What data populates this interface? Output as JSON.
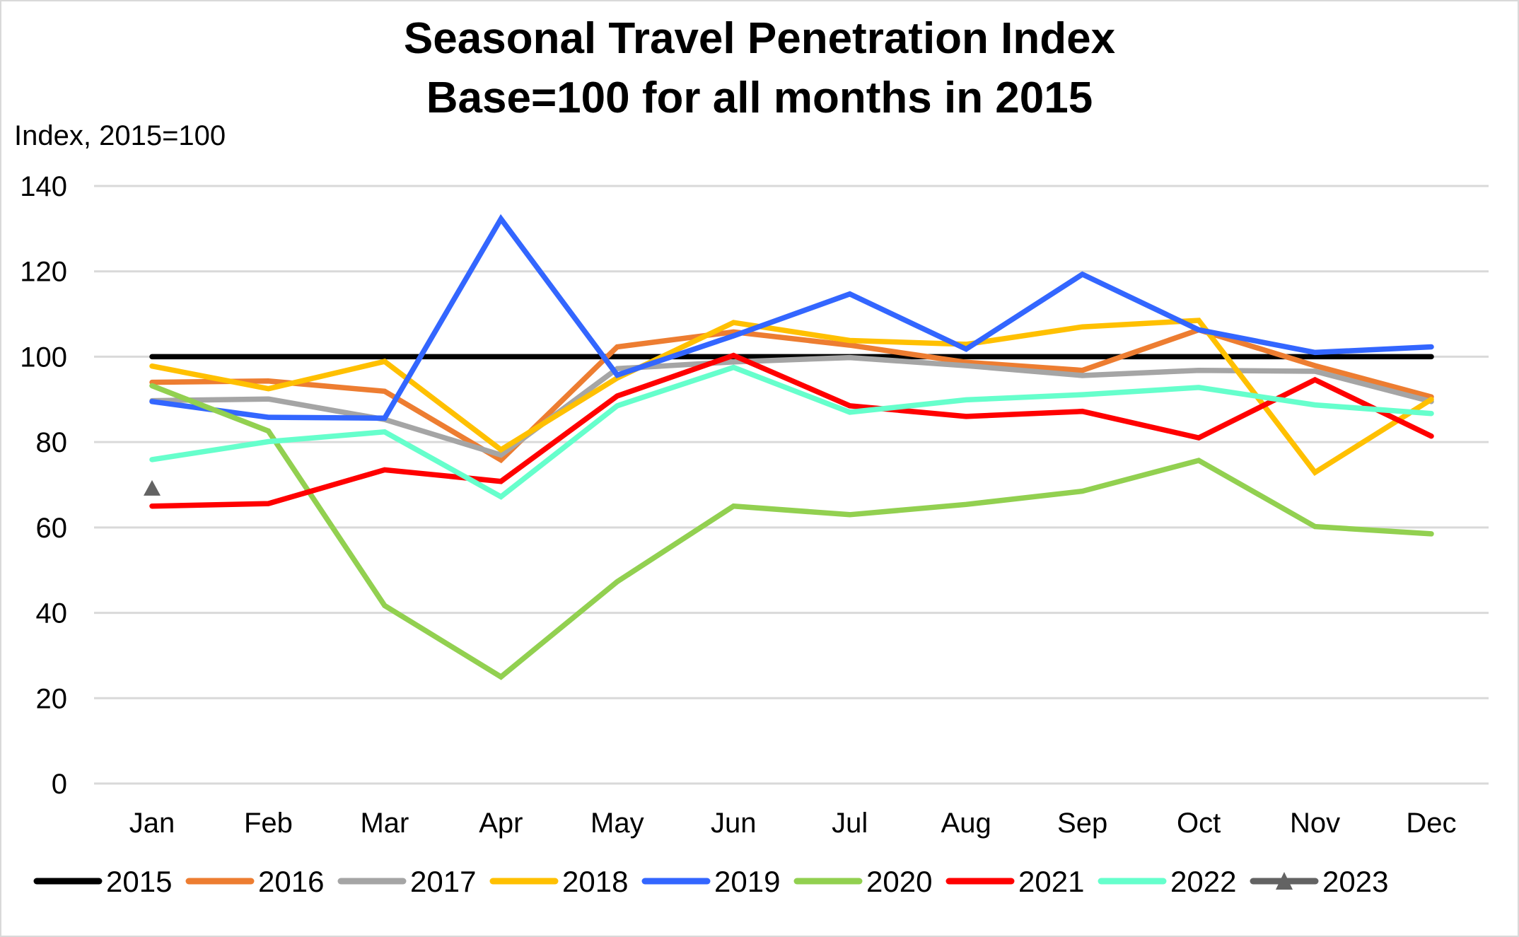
{
  "chart_data": {
    "type": "line",
    "title": "Seasonal Travel Penetration Index",
    "subtitle": "Base=100 for all months in 2015",
    "ylabel": "Index, 2015=100",
    "xlabel": "",
    "categories": [
      "Jan",
      "Feb",
      "Mar",
      "Apr",
      "May",
      "Jun",
      "Jul",
      "Aug",
      "Sep",
      "Oct",
      "Nov",
      "Dec"
    ],
    "ylim": [
      0,
      140
    ],
    "yticks": [
      0,
      20,
      40,
      60,
      80,
      100,
      120,
      140
    ],
    "grid": true,
    "legend_position": "bottom",
    "series": [
      {
        "name": "2015",
        "color": "#000000",
        "marker": "none",
        "values": [
          100,
          100,
          100,
          100,
          100,
          100,
          100,
          100,
          100,
          100,
          100,
          100
        ]
      },
      {
        "name": "2016",
        "color": "#ED7D31",
        "marker": "none",
        "values": [
          94,
          94.3,
          91.9,
          75.8,
          102.3,
          105.8,
          102.7,
          98.7,
          96.8,
          106.3,
          97.9,
          90.6
        ]
      },
      {
        "name": "2017",
        "color": "#A5A5A5",
        "marker": "none",
        "values": [
          89.7,
          90.1,
          85.3,
          77,
          97.2,
          98.8,
          99.8,
          97.9,
          95.6,
          96.8,
          96.6,
          89.5
        ]
      },
      {
        "name": "2018",
        "color": "#FFC000",
        "marker": "none",
        "values": [
          97.8,
          92.5,
          98.9,
          78.2,
          95,
          108,
          103.8,
          102.9,
          107,
          108.5,
          72.9,
          90
        ]
      },
      {
        "name": "2019",
        "color": "#3366FF",
        "marker": "none",
        "values": [
          89.5,
          85.8,
          85.6,
          132.3,
          95.7,
          104.9,
          114.7,
          101.8,
          119.3,
          106.3,
          101,
          102.3
        ]
      },
      {
        "name": "2020",
        "color": "#92D050",
        "marker": "none",
        "values": [
          93.2,
          82.6,
          41.7,
          25,
          47.3,
          65,
          63,
          65.4,
          68.5,
          75.7,
          60.2,
          58.5
        ]
      },
      {
        "name": "2021",
        "color": "#FF0000",
        "marker": "none",
        "values": [
          65,
          65.6,
          73.5,
          70.8,
          90.8,
          100.3,
          88.5,
          86,
          87.2,
          81,
          94.6,
          81.4
        ]
      },
      {
        "name": "2022",
        "color": "#66FFCC",
        "marker": "none",
        "values": [
          75.9,
          80.1,
          82.4,
          67.2,
          88.5,
          97.5,
          87,
          89.9,
          91.1,
          92.8,
          88.7,
          86.7
        ]
      },
      {
        "name": "2023",
        "color": "#636363",
        "marker": "triangle",
        "values": [
          69.1,
          null,
          null,
          null,
          null,
          null,
          null,
          null,
          null,
          null,
          null,
          null
        ]
      }
    ]
  }
}
